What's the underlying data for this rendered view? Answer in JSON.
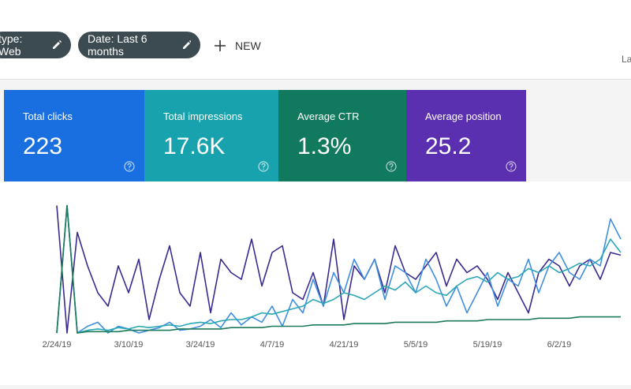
{
  "toolbar": {
    "filters": [
      "type: Web",
      "Date: Last 6 months"
    ],
    "new_button": "NEW",
    "right_text": "La"
  },
  "cards": [
    {
      "label": "Total clicks",
      "value": "223",
      "color": "#1a6fe0"
    },
    {
      "label": "Total impressions",
      "value": "17.6K",
      "color": "#17a2ad"
    },
    {
      "label": "Average CTR",
      "value": "1.3%",
      "color": "#117a5e"
    },
    {
      "label": "Average position",
      "value": "25.2",
      "color": "#5a2fb0"
    }
  ],
  "chart_data": {
    "type": "line",
    "categories": [
      "2/24/19",
      null,
      null,
      null,
      null,
      null,
      null,
      "3/10/19",
      null,
      null,
      null,
      null,
      null,
      null,
      "3/24/19",
      null,
      null,
      null,
      null,
      null,
      null,
      "4/7/19",
      null,
      null,
      null,
      null,
      null,
      null,
      "4/21/19",
      null,
      null,
      null,
      null,
      null,
      null,
      "5/5/19",
      null,
      null,
      null,
      null,
      null,
      null,
      "5/19/19",
      null,
      null,
      null,
      null,
      null,
      null,
      "6/2/19",
      null,
      null,
      null,
      null,
      null,
      null
    ],
    "ylim": [
      0,
      100
    ],
    "series": [
      {
        "color": "#3a2a8f",
        "values": [
          95,
          0,
          75,
          50,
          30,
          20,
          50,
          30,
          55,
          10,
          40,
          65,
          30,
          20,
          60,
          15,
          55,
          45,
          40,
          70,
          35,
          60,
          65,
          30,
          25,
          45,
          20,
          70,
          10,
          50,
          40,
          55,
          30,
          65,
          45,
          40,
          50,
          60,
          35,
          55,
          45,
          50,
          40,
          25,
          45,
          30,
          15,
          45,
          55,
          50,
          35,
          50,
          55,
          40,
          60,
          58
        ]
      },
      {
        "color": "#3f8fe0",
        "values": [
          0,
          95,
          0,
          5,
          8,
          0,
          5,
          3,
          0,
          2,
          4,
          8,
          2,
          3,
          5,
          10,
          4,
          15,
          6,
          12,
          8,
          20,
          5,
          25,
          15,
          40,
          20,
          45,
          30,
          55,
          40,
          55,
          25,
          50,
          45,
          30,
          55,
          40,
          20,
          35,
          15,
          30,
          45,
          20,
          40,
          35,
          55,
          30,
          50,
          60,
          45,
          40,
          55,
          50,
          85,
          70
        ]
      },
      {
        "color": "#2aa7b5",
        "values": [
          0,
          95,
          0,
          2,
          3,
          2,
          4,
          3,
          5,
          4,
          5,
          6,
          5,
          7,
          8,
          7,
          9,
          10,
          10,
          12,
          15,
          14,
          16,
          18,
          20,
          25,
          22,
          25,
          30,
          28,
          25,
          30,
          35,
          32,
          38,
          30,
          35,
          30,
          28,
          35,
          40,
          42,
          38,
          45,
          40,
          42,
          48,
          45,
          50,
          45,
          48,
          52,
          50,
          55,
          70,
          60
        ]
      },
      {
        "color": "#1d7a5a",
        "values": [
          0,
          95,
          0,
          1,
          1,
          1,
          1,
          2,
          2,
          2,
          2,
          2,
          3,
          3,
          3,
          3,
          3,
          4,
          4,
          4,
          4,
          5,
          5,
          5,
          5,
          6,
          6,
          6,
          6,
          7,
          7,
          7,
          7,
          8,
          8,
          8,
          8,
          8,
          9,
          9,
          9,
          9,
          10,
          10,
          10,
          10,
          10,
          11,
          11,
          11,
          11,
          12,
          12,
          12,
          12,
          12
        ]
      }
    ]
  }
}
